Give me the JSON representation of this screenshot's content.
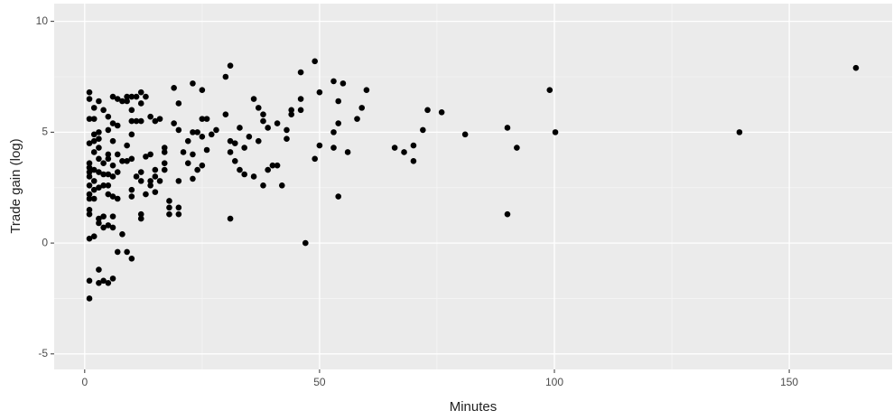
{
  "chart_data": {
    "type": "scatter",
    "x_label": "Minutes",
    "y_label": "Trade gain (log)",
    "x": [
      164.2,
      139.4,
      100.2,
      99,
      92,
      90,
      90,
      81,
      76,
      73,
      72,
      70,
      70,
      68,
      66,
      60,
      58,
      59,
      56,
      55,
      53,
      54,
      54,
      53,
      53,
      54,
      50,
      50,
      49,
      49,
      47,
      46,
      46,
      46,
      44,
      44,
      43,
      43,
      41,
      42,
      41,
      40,
      39,
      38,
      38,
      39,
      37,
      36,
      35,
      37,
      36,
      38,
      34,
      33,
      34,
      33,
      32,
      31,
      30,
      30,
      31,
      31,
      32,
      31,
      28,
      27,
      26,
      25,
      25,
      23,
      24,
      23,
      25,
      26,
      25,
      24,
      22,
      22,
      23,
      23,
      21,
      20,
      19,
      19,
      20,
      20,
      18,
      18,
      18,
      20,
      20,
      17,
      17,
      17,
      17,
      16,
      15,
      14,
      16,
      15,
      15,
      14,
      15,
      14,
      13,
      12,
      12,
      11,
      12,
      11,
      13,
      12,
      11,
      12,
      12,
      12,
      13,
      14,
      10,
      9,
      9,
      8,
      7,
      6,
      10,
      10,
      10,
      9,
      8,
      9,
      10,
      10,
      10,
      10,
      9,
      8,
      7,
      7,
      7,
      7,
      7,
      6,
      6,
      6,
      6,
      6,
      6,
      6,
      6,
      5,
      5,
      5,
      5,
      5,
      5,
      5,
      5,
      5,
      4,
      4,
      4,
      4,
      4,
      4,
      4,
      3,
      3,
      3,
      3,
      3,
      3,
      3,
      3,
      3,
      3,
      3,
      2,
      2,
      2,
      2,
      2,
      2,
      2,
      2,
      1,
      1,
      1,
      1,
      1,
      1,
      1,
      1,
      1,
      1,
      1,
      1,
      1,
      1,
      1,
      1,
      2,
      2
    ],
    "values": [
      7.9,
      5.0,
      5.0,
      6.9,
      4.3,
      5.2,
      1.3,
      4.9,
      5.9,
      6.0,
      5.1,
      4.4,
      3.7,
      4.1,
      4.3,
      6.9,
      5.6,
      6.1,
      4.1,
      7.2,
      7.3,
      6.4,
      5.4,
      5.0,
      4.3,
      2.1,
      6.8,
      4.4,
      8.2,
      3.8,
      0.0,
      7.7,
      6.5,
      6.0,
      5.8,
      6.0,
      5.1,
      4.7,
      5.4,
      2.6,
      3.5,
      3.5,
      3.3,
      5.5,
      5.8,
      5.2,
      6.1,
      6.5,
      4.8,
      4.6,
      3.0,
      2.6,
      4.3,
      5.2,
      3.1,
      3.3,
      3.7,
      8.0,
      7.5,
      5.8,
      4.6,
      4.1,
      4.5,
      1.1,
      5.1,
      4.9,
      5.6,
      5.6,
      6.9,
      7.2,
      5.0,
      5.0,
      4.8,
      4.2,
      3.5,
      3.3,
      3.6,
      4.6,
      2.9,
      4.0,
      4.1,
      6.3,
      7.0,
      5.4,
      5.1,
      2.8,
      1.9,
      1.6,
      1.3,
      1.6,
      1.3,
      4.1,
      4.3,
      3.3,
      3.6,
      5.6,
      5.5,
      5.7,
      2.8,
      3.0,
      3.3,
      2.6,
      2.3,
      2.8,
      6.6,
      6.8,
      6.3,
      6.6,
      5.5,
      5.5,
      3.9,
      3.2,
      3.0,
      2.8,
      1.3,
      1.1,
      2.2,
      4.0,
      6.6,
      6.4,
      6.6,
      6.4,
      6.5,
      6.6,
      6.0,
      5.5,
      4.9,
      4.4,
      3.7,
      3.7,
      3.8,
      2.4,
      2.1,
      -0.7,
      -0.4,
      0.4,
      -0.4,
      2.0,
      3.2,
      4.0,
      5.3,
      5.4,
      4.6,
      3.5,
      3.0,
      2.1,
      1.2,
      0.7,
      -1.6,
      -1.8,
      0.8,
      2.2,
      2.6,
      3.1,
      3.8,
      4.0,
      5.1,
      5.7,
      6.0,
      3.6,
      3.1,
      2.6,
      1.2,
      0.7,
      -1.7,
      -1.8,
      -1.2,
      0.9,
      1.1,
      2.5,
      3.2,
      3.8,
      4.3,
      4.7,
      5.0,
      6.4,
      6.1,
      4.9,
      4.1,
      3.3,
      2.8,
      2.4,
      2.0,
      0.3,
      6.8,
      6.5,
      5.6,
      4.5,
      3.6,
      3.4,
      3.2,
      3.0,
      2.6,
      2.2,
      2.0,
      1.5,
      1.3,
      0.2,
      -1.7,
      -2.5,
      5.6,
      4.6
    ],
    "color": "#000000",
    "xlim": [
      -6.5,
      171.9
    ],
    "xticks": [
      0,
      50,
      100,
      150
    ],
    "ylim": [
      -5.7,
      10.8
    ],
    "yticks": [
      -5,
      0,
      5,
      10
    ],
    "grid": true,
    "minor_grid": true
  }
}
